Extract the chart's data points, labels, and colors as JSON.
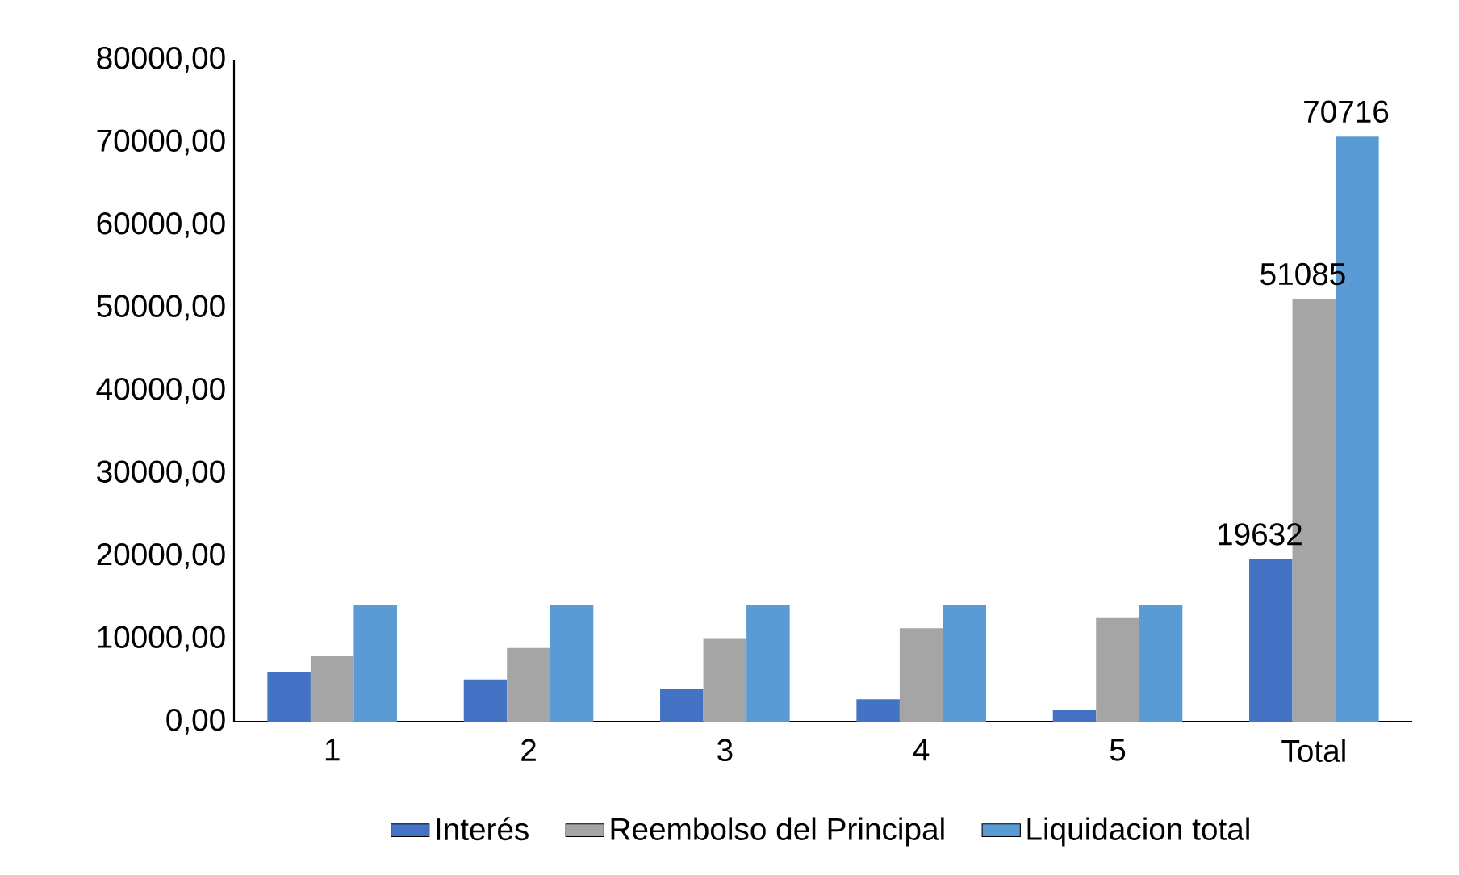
{
  "chart_data": {
    "type": "bar",
    "categories": [
      "1",
      "2",
      "3",
      "4",
      "5",
      "Total"
    ],
    "series": [
      {
        "name": "Interés",
        "color": "#4472c4",
        "values": [
          6000,
          5100,
          3900,
          2700,
          1400,
          19632
        ],
        "value_labels": [
          null,
          null,
          null,
          null,
          null,
          "19632"
        ]
      },
      {
        "name": "Reembolso del Principal",
        "color": "#a5a5a5",
        "values": [
          7900,
          8900,
          10000,
          11300,
          12600,
          51085
        ],
        "value_labels": [
          null,
          null,
          null,
          null,
          null,
          "51085"
        ]
      },
      {
        "name": "Liquidacion total",
        "color": "#5b9bd5",
        "values": [
          14100,
          14100,
          14100,
          14100,
          14100,
          70716
        ],
        "value_labels": [
          null,
          null,
          null,
          null,
          null,
          "70716"
        ]
      }
    ],
    "ylim": [
      0,
      80000
    ],
    "yticks": [
      {
        "value": 0,
        "label": "0,00"
      },
      {
        "value": 10000,
        "label": "10000,00"
      },
      {
        "value": 20000,
        "label": "20000,00"
      },
      {
        "value": 30000,
        "label": "30000,00"
      },
      {
        "value": 40000,
        "label": "40000,00"
      },
      {
        "value": 50000,
        "label": "50000,00"
      },
      {
        "value": 60000,
        "label": "60000,00"
      },
      {
        "value": 70000,
        "label": "70000,00"
      },
      {
        "value": 80000,
        "label": "80000,00"
      }
    ],
    "grid": false,
    "legend": "bottom"
  }
}
